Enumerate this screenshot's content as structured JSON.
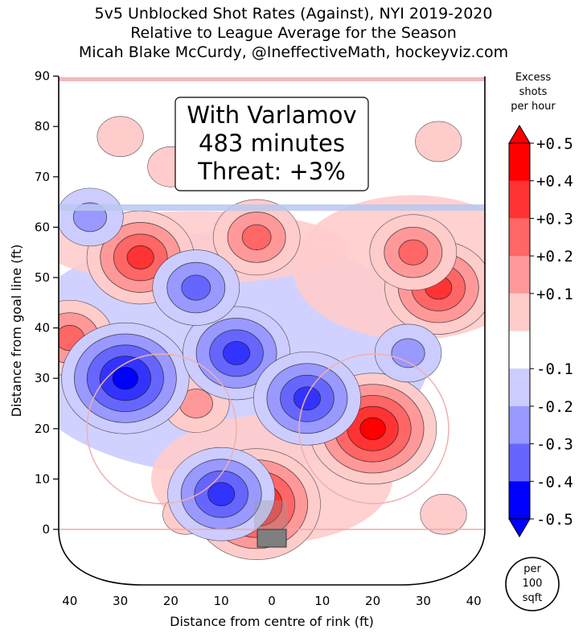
{
  "chart_data": {
    "type": "heatmap",
    "title": "5v5 Unblocked Shot Rates (Against), NYI 2019-2020",
    "subtitle": "Relative to League Average for the Season",
    "credit": "Micah Blake McCurdy, @IneffectiveMath, hockeyviz.com",
    "xlabel": "Distance from centre of rink (ft)",
    "ylabel": "Distance from goal line (ft)",
    "xlim": [
      42,
      -42
    ],
    "ylim": [
      -11,
      90
    ],
    "xticks": [
      40,
      30,
      20,
      10,
      0,
      10,
      20,
      30,
      40
    ],
    "yticks": [
      0,
      10,
      20,
      30,
      40,
      50,
      60,
      70,
      80,
      90
    ],
    "annotation": {
      "line1": "With Varlamov",
      "line2": "483 minutes",
      "line3": "Threat: +3%"
    },
    "colorbar": {
      "label": [
        "Excess",
        "shots",
        "per hour"
      ],
      "range": [
        -0.5,
        0.5
      ],
      "ticks": [
        "+0.5",
        "+0.4",
        "+0.3",
        "+0.2",
        "+0.1",
        "-0.1",
        "-0.2",
        "-0.3",
        "-0.4",
        "-0.5"
      ],
      "colors": [
        "#ff0000",
        "#ff3333",
        "#ff6666",
        "#ff9999",
        "#ffcccc",
        "#ffffff",
        "#ccccff",
        "#9999ff",
        "#6666ff",
        "#3333ff",
        "#0000ff"
      ]
    },
    "unit_badge": [
      "per",
      "100",
      "sqft"
    ],
    "regions": [
      {
        "x": 3,
        "y": 5,
        "value": 0.5
      },
      {
        "x": -20,
        "y": 20,
        "value": 0.5
      },
      {
        "x": -33,
        "y": 48,
        "value": 0.4
      },
      {
        "x": -28,
        "y": 55,
        "value": 0.3
      },
      {
        "x": 26,
        "y": 54,
        "value": 0.4
      },
      {
        "x": 3,
        "y": 58,
        "value": 0.3
      },
      {
        "x": 40,
        "y": 38,
        "value": 0.3
      },
      {
        "x": 15,
        "y": 25,
        "value": 0.2
      },
      {
        "x": 20,
        "y": 72,
        "value": 0.1
      },
      {
        "x": 30,
        "y": 78,
        "value": 0.1
      },
      {
        "x": -33,
        "y": 77,
        "value": 0.1
      },
      {
        "x": 17,
        "y": 3,
        "value": 0.1
      },
      {
        "x": -34,
        "y": 3,
        "value": 0.1
      },
      {
        "x": 29,
        "y": 30,
        "value": -0.5
      },
      {
        "x": 7,
        "y": 35,
        "value": -0.4
      },
      {
        "x": -7,
        "y": 26,
        "value": -0.4
      },
      {
        "x": 10,
        "y": 7,
        "value": -0.4
      },
      {
        "x": 15,
        "y": 48,
        "value": -0.3
      },
      {
        "x": -27,
        "y": 35,
        "value": -0.2
      },
      {
        "x": 36,
        "y": 62,
        "value": -0.2
      }
    ]
  }
}
